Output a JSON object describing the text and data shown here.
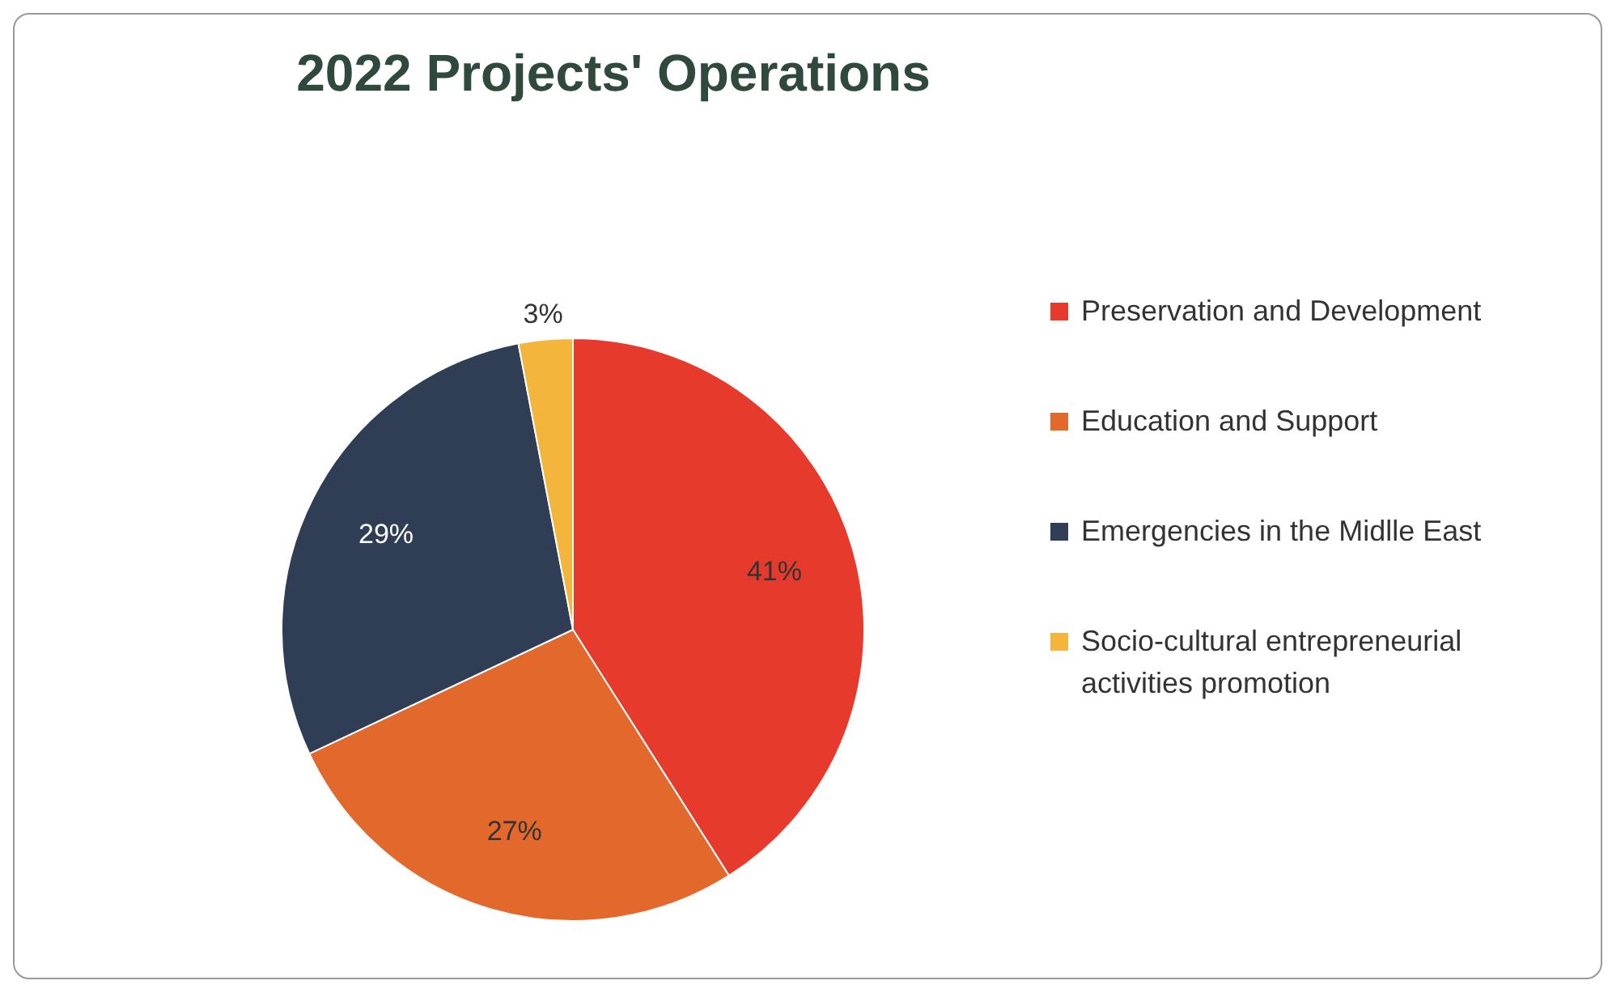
{
  "chart_data": {
    "type": "pie",
    "title": "2022 Projects' Operations",
    "categories": [
      "Preservation and Development",
      "Education and Support",
      "Emergencies in the Midlle East",
      "Socio-cultural entrepreneurial activities promotion"
    ],
    "values": [
      41,
      27,
      29,
      3
    ],
    "value_labels": [
      "41%",
      "27%",
      "29%",
      "3%"
    ],
    "colors": [
      "#e63a2c",
      "#e2682b",
      "#2f3e55",
      "#f3b53c"
    ],
    "legend": "right"
  }
}
